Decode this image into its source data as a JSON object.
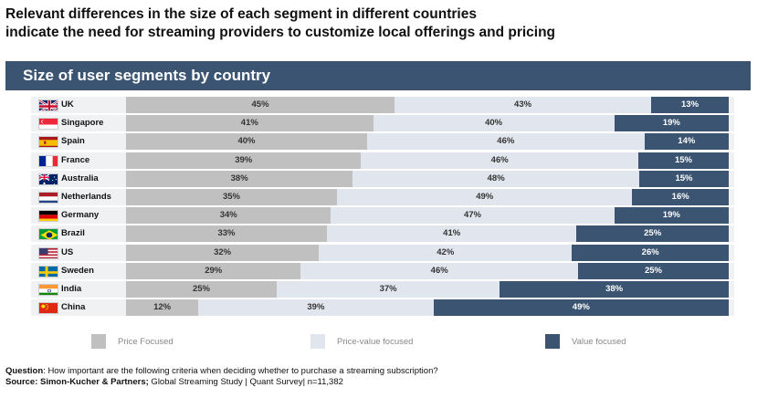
{
  "headline": {
    "line1": "Relevant differences in the size of each segment in different countries",
    "line2": "indicate the need for streaming providers to customize local offerings and pricing"
  },
  "banner": {
    "title": "Size of user segments by country"
  },
  "colors": {
    "price": "#c0c0c0",
    "price_value": "#e1e6ee",
    "value": "#3a5472",
    "row_bg": "#f0f1f3"
  },
  "chart_data": {
    "type": "bar",
    "stacked": true,
    "orientation": "horizontal",
    "title": "Size of user segments by country",
    "categories": [
      "UK",
      "Singapore",
      "Spain",
      "France",
      "Australia",
      "Netherlands",
      "Germany",
      "Brazil",
      "US",
      "Sweden",
      "India",
      "China"
    ],
    "flags": [
      "uk-flag-icon",
      "singapore-flag-icon",
      "spain-flag-icon",
      "france-flag-icon",
      "australia-flag-icon",
      "netherlands-flag-icon",
      "germany-flag-icon",
      "brazil-flag-icon",
      "us-flag-icon",
      "sweden-flag-icon",
      "india-flag-icon",
      "china-flag-icon"
    ],
    "series": [
      {
        "name": "Price Focused",
        "values": [
          45,
          41,
          40,
          39,
          38,
          35,
          34,
          33,
          32,
          29,
          25,
          12
        ]
      },
      {
        "name": "Price-value focused",
        "values": [
          43,
          40,
          46,
          46,
          48,
          49,
          47,
          41,
          42,
          46,
          37,
          39
        ]
      },
      {
        "name": "Value focused",
        "values": [
          13,
          19,
          14,
          15,
          15,
          16,
          19,
          25,
          26,
          25,
          38,
          49
        ]
      }
    ],
    "value_suffix": "%",
    "legend_position": "bottom"
  },
  "footnote": {
    "question_label": "Question",
    "question_text": ": How important are the following criteria when deciding whether to purchase a streaming subscription?",
    "source_label": "Source: Simon-Kucher & Partners;",
    "source_text": " Global Streaming Study | Quant Survey| n=11,382"
  }
}
